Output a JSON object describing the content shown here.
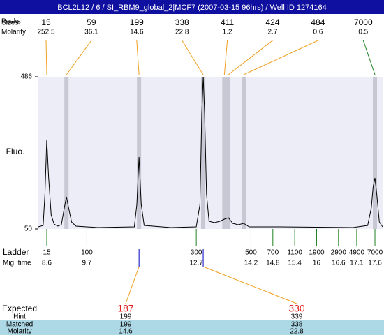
{
  "chart_data": {
    "type": "electropherogram",
    "title": "BCL2L12 / 6 / SI_RBM9_global_2|MCF7 (2007-03-15 96hrs) / Well ID 1274164",
    "y_label": "Fluo.",
    "ylim": [
      50,
      486
    ],
    "yticks": [
      50,
      486
    ],
    "xlim": [
      8.37,
      17.81
    ],
    "peaks": {
      "label_peaks": "Peaks",
      "label_sizes": "Sizes",
      "label_molarity": "Molarity",
      "sizes": [
        15,
        59,
        199,
        338,
        411,
        424,
        484,
        7000
      ],
      "molarity": [
        252.5,
        36.1,
        14.6,
        22.8,
        1.2,
        2.7,
        0.6,
        0.5
      ],
      "times": [
        8.6,
        9.14,
        11.13,
        12.89,
        13.47,
        13.58,
        14.0,
        17.6
      ],
      "colors": [
        "#f0a020",
        "#f0a020",
        "#f0a020",
        "#f0a020",
        "#f0a020",
        "#f0a020",
        "#f0a020",
        "#208020"
      ]
    },
    "ladder": {
      "label": "Ladder",
      "time_label": "Mig. time",
      "sizes": [
        15,
        100,
        300,
        500,
        700,
        1100,
        1900,
        2900,
        4900,
        7000
      ],
      "times": [
        8.6,
        9.7,
        12.7,
        14.2,
        14.8,
        15.4,
        16,
        16.6,
        17.1,
        17.6
      ],
      "color": "#208020"
    },
    "trace": {
      "color": "#000000",
      "x": [
        8.37,
        8.5,
        8.55,
        8.6,
        8.65,
        8.72,
        8.8,
        8.9,
        9.0,
        9.08,
        9.14,
        9.2,
        9.28,
        9.4,
        10.0,
        11.0,
        11.07,
        11.13,
        11.19,
        11.27,
        12.0,
        12.7,
        12.8,
        12.85,
        12.89,
        12.93,
        12.98,
        13.05,
        13.2,
        13.35,
        13.47,
        13.58,
        13.7,
        13.85,
        14.0,
        14.15,
        15.0,
        16.0,
        17.0,
        17.4,
        17.5,
        17.55,
        17.6,
        17.65,
        17.72,
        17.81
      ],
      "y": [
        56,
        60,
        150,
        306,
        200,
        90,
        64,
        58,
        62,
        110,
        142,
        110,
        70,
        58,
        54,
        56,
        120,
        256,
        120,
        60,
        54,
        56,
        120,
        380,
        486,
        380,
        150,
        72,
        68,
        72,
        78,
        82,
        66,
        62,
        66,
        56,
        56,
        55,
        54,
        60,
        110,
        170,
        196,
        150,
        70,
        56
      ]
    },
    "expected": {
      "labels": [
        "Expected",
        "Hint",
        "Matched",
        "Molarity"
      ],
      "rows": [
        [
          187,
          199,
          199,
          14.6
        ],
        [
          330,
          339,
          338,
          22.8
        ]
      ],
      "times": [
        11.13,
        12.89
      ],
      "colors": [
        "#e02020",
        "#e02020"
      ]
    }
  }
}
